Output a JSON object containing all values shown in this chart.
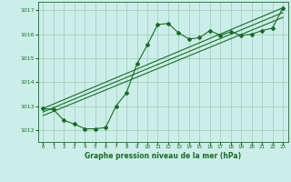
{
  "bg_color": "#cceee8",
  "grid_color": "#99ccbb",
  "line_color": "#1a6b2a",
  "xlim": [
    -0.5,
    23.5
  ],
  "ylim": [
    1011.5,
    1017.35
  ],
  "yticks": [
    1012,
    1013,
    1014,
    1015,
    1016,
    1017
  ],
  "xticks": [
    0,
    1,
    2,
    3,
    4,
    5,
    6,
    7,
    8,
    9,
    10,
    11,
    12,
    13,
    14,
    15,
    16,
    17,
    18,
    19,
    20,
    21,
    22,
    23
  ],
  "xlabel": "Graphe pression niveau de la mer (hPa)",
  "main_x": [
    0,
    1,
    2,
    3,
    4,
    5,
    6,
    7,
    8,
    9,
    10,
    11,
    12,
    13,
    14,
    15,
    16,
    17,
    18,
    19,
    20,
    21,
    22,
    23
  ],
  "main_y": [
    1012.9,
    1012.85,
    1012.4,
    1012.25,
    1012.05,
    1012.05,
    1012.1,
    1013.0,
    1013.55,
    1014.75,
    1015.55,
    1016.4,
    1016.45,
    1016.05,
    1015.8,
    1015.85,
    1016.15,
    1015.95,
    1016.1,
    1015.95,
    1016.0,
    1016.15,
    1016.25,
    1017.1
  ],
  "trend1_x": [
    0,
    23
  ],
  "trend1_y": [
    1012.9,
    1017.1
  ],
  "trend2_x": [
    0,
    23
  ],
  "trend2_y": [
    1012.75,
    1016.9
  ],
  "trend3_x": [
    0,
    23
  ],
  "trend3_y": [
    1012.6,
    1016.7
  ]
}
